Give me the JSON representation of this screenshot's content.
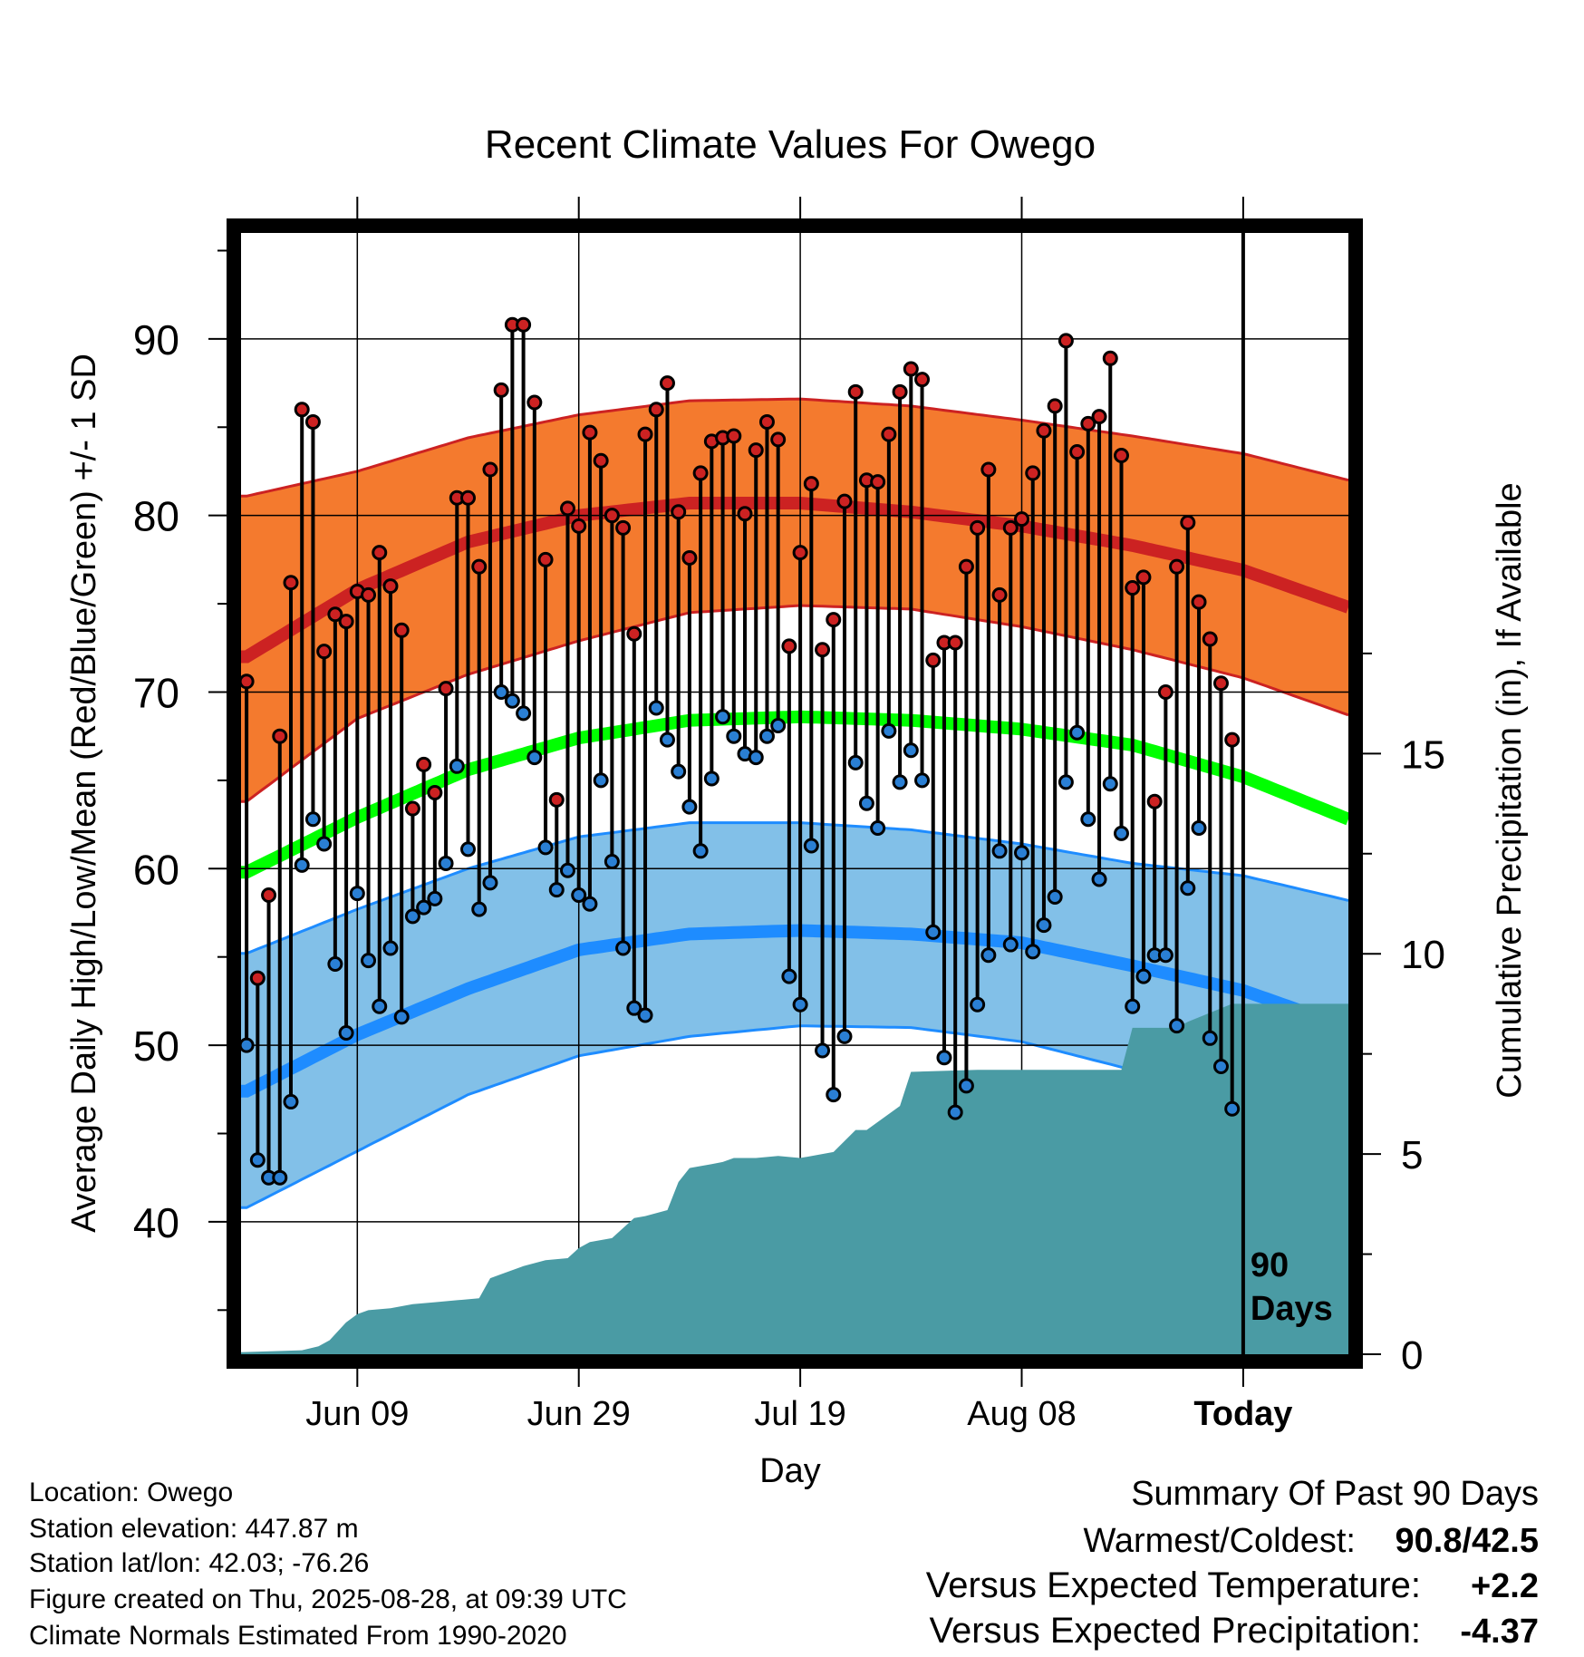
{
  "chart_data": {
    "type": "line",
    "title": "Recent Climate Values For Owego",
    "xlabel": "Day",
    "ylabel_left": "Average Daily High/Low/Mean (Red/Blue/Green) +/- 1 SD",
    "ylabel_right": "Cumulative Precipitation (in), If Available",
    "x_range": [
      -0.5,
      99.5
    ],
    "ylim_left": [
      32.5,
      96
    ],
    "ylim_right": [
      0,
      28
    ],
    "y_ticks_left": [
      40,
      50,
      60,
      70,
      80,
      90
    ],
    "y_ticks_right": [
      0,
      5,
      10,
      15
    ],
    "x_ticks": [
      {
        "day": 10,
        "label": "Jun 09"
      },
      {
        "day": 30,
        "label": "Jun 29"
      },
      {
        "day": 50,
        "label": "Jul 19"
      },
      {
        "day": 70,
        "label": "Aug 08"
      },
      {
        "day": 90,
        "label": "Today"
      }
    ],
    "today_marker": {
      "day": 90,
      "label_line1": "90",
      "label_line2": "Days"
    },
    "normal_high": {
      "day": [
        0,
        10,
        20,
        30,
        40,
        50,
        60,
        70,
        80,
        90,
        99.5
      ],
      "value": [
        72,
        75.8,
        78.5,
        80,
        80.7,
        80.7,
        80.2,
        79.4,
        78.3,
        76.9,
        74.8
      ]
    },
    "normal_high_upper": {
      "day": [
        0,
        10,
        20,
        30,
        40,
        50,
        60,
        70,
        80,
        90,
        99.5
      ],
      "value": [
        81.1,
        82.5,
        84.4,
        85.7,
        86.5,
        86.6,
        86.2,
        85.4,
        84.5,
        83.5,
        82
      ]
    },
    "normal_high_lower": {
      "day": [
        0,
        10,
        20,
        30,
        40,
        50,
        60,
        70,
        80,
        90,
        99.5
      ],
      "value": [
        63.8,
        68.5,
        71,
        72.9,
        74.5,
        74.9,
        74.7,
        73.7,
        72.4,
        70.8,
        68.7
      ]
    },
    "normal_mean": {
      "day": [
        0,
        10,
        20,
        30,
        40,
        50,
        60,
        70,
        80,
        90,
        99.5
      ],
      "value": [
        59.8,
        62.9,
        65.6,
        67.4,
        68.4,
        68.6,
        68.4,
        67.9,
        67,
        65.2,
        62.8
      ]
    },
    "normal_low": {
      "day": [
        0,
        10,
        20,
        30,
        40,
        50,
        60,
        70,
        80,
        90,
        99.5
      ],
      "value": [
        47.4,
        50.6,
        53.2,
        55.4,
        56.3,
        56.5,
        56.3,
        55.8,
        54.5,
        53.1,
        51
      ]
    },
    "normal_low_upper": {
      "day": [
        0,
        10,
        20,
        30,
        40,
        50,
        60,
        70,
        80,
        90,
        99.5
      ],
      "value": [
        55.2,
        57.7,
        60,
        61.8,
        62.6,
        62.6,
        62.2,
        61.4,
        60.3,
        59.6,
        58.2
      ]
    },
    "normal_low_lower": {
      "day": [
        0,
        10,
        20,
        30,
        40,
        50,
        60,
        70,
        80,
        90,
        99.5
      ],
      "value": [
        40.8,
        44,
        47.2,
        49.4,
        50.5,
        51.1,
        51,
        50.2,
        48.6,
        47.4,
        44.7
      ]
    },
    "highs": [
      70.6,
      53.8,
      58.5,
      67.5,
      76.2,
      86,
      85.3,
      72.3,
      74.4,
      74,
      75.7,
      75.5,
      77.9,
      76,
      73.5,
      63.4,
      65.9,
      64.3,
      70.2,
      81,
      81,
      77.1,
      82.6,
      87.1,
      90.8,
      90.8,
      86.4,
      77.5,
      63.9,
      80.4,
      79.4,
      84.7,
      83.1,
      80,
      79.3,
      73.3,
      84.6,
      86,
      87.5,
      80.2,
      77.6,
      82.4,
      84.2,
      84.4,
      84.5,
      80.1,
      83.7,
      85.3,
      84.3,
      72.6,
      77.9,
      81.8,
      72.4,
      74.1,
      80.8,
      87,
      82,
      81.9,
      84.6,
      87,
      88.3,
      87.7,
      71.8,
      72.8,
      72.8,
      77.1,
      79.3,
      82.6,
      75.5,
      79.3,
      79.8,
      82.4,
      84.8,
      86.2,
      89.9,
      83.6,
      85.2,
      85.6,
      88.9,
      83.4,
      75.9,
      76.5,
      63.8,
      70,
      77.1,
      79.6,
      75.1,
      73,
      70.5,
      67.3
    ],
    "lows": [
      50,
      43.5,
      42.5,
      42.5,
      46.8,
      60.2,
      62.8,
      61.4,
      54.6,
      50.7,
      58.6,
      54.8,
      52.2,
      55.5,
      51.6,
      57.3,
      57.8,
      58.3,
      60.3,
      65.8,
      61.1,
      57.7,
      59.2,
      70,
      69.5,
      68.8,
      66.3,
      61.2,
      58.8,
      59.9,
      58.5,
      58,
      65,
      60.4,
      55.5,
      52.1,
      51.7,
      69.1,
      67.3,
      65.5,
      63.5,
      61,
      65.1,
      68.6,
      67.5,
      66.5,
      66.3,
      67.5,
      68.1,
      53.9,
      52.3,
      61.3,
      49.7,
      47.2,
      50.5,
      66,
      63.7,
      62.3,
      67.8,
      64.9,
      66.7,
      65,
      56.4,
      49.3,
      46.2,
      47.7,
      52.3,
      55.1,
      61,
      55.7,
      60.9,
      55.3,
      56.8,
      58.4,
      64.9,
      67.7,
      62.8,
      59.4,
      64.8,
      62,
      52.2,
      53.9,
      55.1,
      55.1,
      51.1,
      58.9,
      62.3,
      50.4,
      48.8,
      46.4
    ],
    "precip_cumulative": {
      "day": [
        -0.5,
        5,
        6.5,
        7.5,
        8,
        9,
        10,
        11,
        13,
        15,
        17,
        19,
        21,
        22,
        23,
        25,
        27,
        29,
        30,
        31,
        33,
        35,
        36,
        38,
        39,
        40,
        42,
        43,
        44,
        46,
        48,
        50,
        53,
        55,
        56,
        59,
        60,
        66,
        71,
        77,
        79,
        80,
        82,
        84,
        85,
        89,
        99.5
      ],
      "value": [
        0.05,
        0.1,
        0.2,
        0.35,
        0.5,
        0.8,
        1,
        1.1,
        1.15,
        1.25,
        1.3,
        1.35,
        1.4,
        1.9,
        2,
        2.2,
        2.35,
        2.4,
        2.65,
        2.8,
        2.9,
        3.4,
        3.45,
        3.6,
        4.3,
        4.65,
        4.75,
        4.8,
        4.9,
        4.9,
        4.95,
        4.9,
        5.05,
        5.6,
        5.6,
        6.2,
        7.05,
        7.1,
        7.1,
        7.1,
        7.1,
        8.15,
        8.15,
        8.15,
        8.3,
        8.75,
        8.75
      ]
    }
  },
  "footer_left": [
    "Location: Owego",
    "Station elevation: 447.87 m",
    "Station lat/lon: 42.03; -76.26",
    "Figure created on Thu, 2025-08-28, at 09:39 UTC",
    "Climate Normals Estimated From 1990-2020"
  ],
  "summary": {
    "heading": "Summary Of Past 90 Days",
    "warmest_coldest_label": "Warmest/Coldest:",
    "warmest_coldest_value": "90.8/42.5",
    "temp_label": "Versus Expected Temperature:",
    "temp_value": "+2.2",
    "precip_label": "Versus Expected Precipitation:",
    "precip_value": "-4.37",
    "colors": {
      "temp_positive": "#cc2222",
      "precip_negative": "#a0522d"
    }
  },
  "colors": {
    "high_band": "#f47a2e",
    "high_line": "#cc2222",
    "mean_line": "#00ff00",
    "low_band": "#82c0e8",
    "low_line": "#1e8cff",
    "precip_fill": "#4a9ba4",
    "high_dot": "#cc2222",
    "low_dot": "#2a7fd4"
  }
}
